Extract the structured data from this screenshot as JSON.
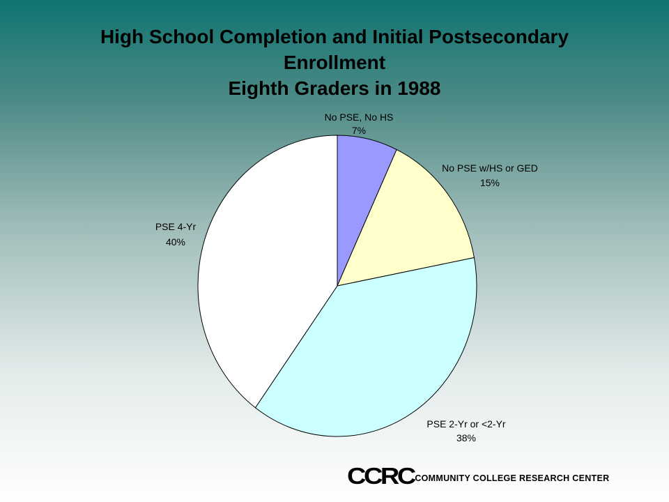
{
  "chart_data": {
    "type": "pie",
    "title": "High School Completion and Initial Postsecondary Enrollment",
    "subtitle": "Eighth Graders in 1988",
    "slices": [
      {
        "label": "No PSE, No HS",
        "value": 7,
        "value_label": "7%",
        "color": "#9999ff"
      },
      {
        "label": "No PSE w/HS or GED",
        "value": 15,
        "value_label": "15%",
        "color": "#ffffcc"
      },
      {
        "label": "PSE 2-Yr or <2-Yr",
        "value": 38,
        "value_label": "38%",
        "color": "#ccffff"
      },
      {
        "label": "PSE 4-Yr",
        "value": 40,
        "value_label": "40%",
        "color": "#ffffff"
      }
    ]
  },
  "title_lines": [
    "High School Completion and Initial Postsecondary",
    "Enrollment",
    "Eighth Graders in 1988"
  ],
  "logo": {
    "mark": "CCRC",
    "full_name": "COMMUNITY COLLEGE RESEARCH CENTER"
  }
}
